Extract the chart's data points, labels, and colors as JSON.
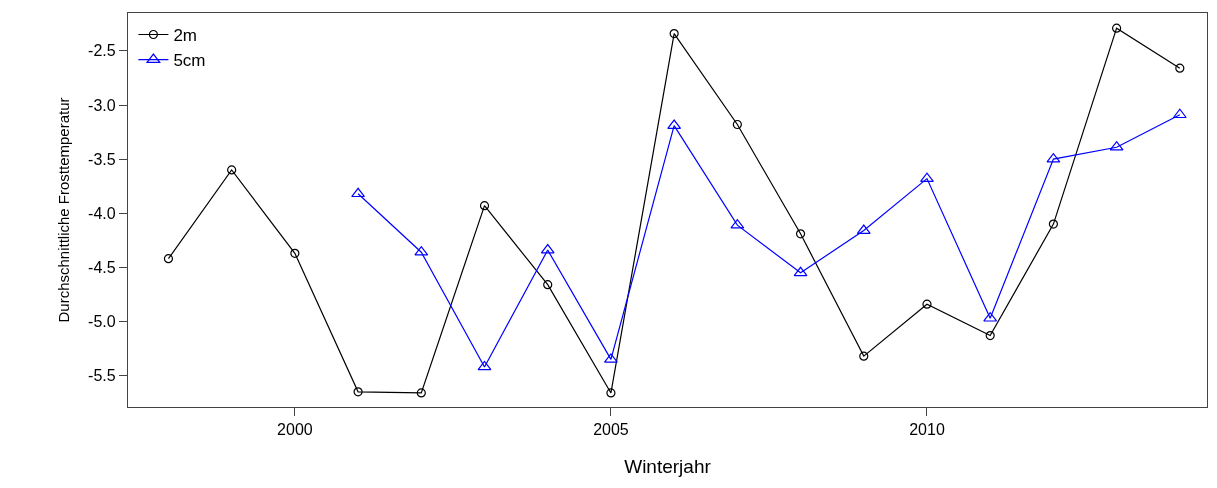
{
  "chart_data": {
    "type": "line",
    "xlabel": "Winterjahr",
    "ylabel": "Durchschnittliche Frosttemperatur",
    "x": [
      1998,
      1999,
      2000,
      2001,
      2002,
      2003,
      2004,
      2005,
      2006,
      2007,
      2008,
      2009,
      2010,
      2011,
      2012,
      2013,
      2014
    ],
    "series": [
      {
        "name": "2m",
        "color": "#000000",
        "marker": "circle",
        "values": [
          -4.42,
          -3.6,
          -4.37,
          -5.65,
          -5.66,
          -3.93,
          -4.66,
          -5.66,
          -2.34,
          -3.18,
          -4.19,
          -5.32,
          -4.84,
          -5.13,
          -4.1,
          -2.29,
          -2.66
        ]
      },
      {
        "name": "5cm",
        "color": "#0000ff",
        "marker": "triangle",
        "values": [
          null,
          null,
          null,
          -3.82,
          -4.36,
          -5.42,
          -4.34,
          -5.35,
          -3.19,
          -4.11,
          -4.55,
          -4.16,
          -3.68,
          -4.97,
          -3.5,
          -3.39,
          -3.09
        ]
      }
    ],
    "xlim": [
      1997.36,
      2014.43
    ],
    "xticks": [
      2000,
      2005,
      2010
    ],
    "ylim": [
      -5.79,
      -2.15
    ],
    "yticks": [
      -2.5,
      {
        "value": -3,
        "label": "-3.0"
      },
      -3.5,
      {
        "value": -4,
        "label": "-4.0"
      },
      -4.5,
      {
        "value": -5,
        "label": "-5.0"
      },
      -5.5
    ],
    "grid": false,
    "legend": "top left",
    "line_style": "solid"
  }
}
